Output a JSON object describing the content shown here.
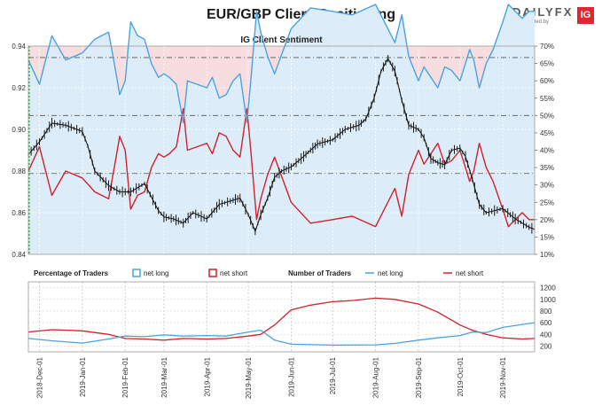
{
  "header": {
    "title": "EUR/GBP Client Positioning",
    "brand_name": "DAILYFX",
    "brand_tagline": "provided by",
    "brand_badge": "IG"
  },
  "colors": {
    "net_long": "#4aa3df",
    "net_short": "#d0222c",
    "price": "#1a1a1a",
    "long_fill": "#dcecf8",
    "short_fill": "#f7dde0"
  },
  "chart_data": [
    {
      "type": "line",
      "title": "IG Client Sentiment",
      "left_axis_ticks": [
        "0.84",
        "0.86",
        "0.88",
        "0.90",
        "0.92",
        "0.94"
      ],
      "left_ylim": [
        0.84,
        0.94
      ],
      "right_axis_ticks": [
        "10%",
        "15%",
        "20%",
        "25%",
        "30%",
        "35%",
        "40%",
        "45%",
        "50%",
        "55%",
        "60%",
        "65%",
        "70%"
      ],
      "right_ylim": [
        10,
        70
      ],
      "reference_lines_pct": [
        33.3,
        50,
        66.7
      ],
      "x_labels": [
        "2018-Dec-01",
        "2019-Jan-01",
        "2019-Feb-01",
        "2019-Mar-01",
        "2019-Apr-01",
        "2019-May-01",
        "2019-Jun-01",
        "2019-Jul-01",
        "2019-Aug-01",
        "2019-Sep-01",
        "2019-Oct-01",
        "2019-Nov-01"
      ],
      "x_range": [
        "2018-11-23",
        "2019-11-24"
      ],
      "series": [
        {
          "name": "net long",
          "unit": "%",
          "dates": [
            "2018-11-23",
            "2018-12-01",
            "2018-12-10",
            "2018-12-20",
            "2019-01-01",
            "2019-01-10",
            "2019-01-20",
            "2019-01-25",
            "2019-01-28",
            "2019-02-01",
            "2019-02-05",
            "2019-02-10",
            "2019-02-15",
            "2019-02-20",
            "2019-02-25",
            "2019-03-01",
            "2019-03-05",
            "2019-03-10",
            "2019-03-15",
            "2019-03-18",
            "2019-03-25",
            "2019-04-01",
            "2019-04-05",
            "2019-04-10",
            "2019-04-15",
            "2019-04-20",
            "2019-04-25",
            "2019-04-30",
            "2019-05-03",
            "2019-05-07",
            "2019-05-10",
            "2019-05-15",
            "2019-05-20",
            "2019-06-01",
            "2019-06-15",
            "2019-07-01",
            "2019-07-15",
            "2019-08-01",
            "2019-08-15",
            "2019-08-20",
            "2019-08-25",
            "2019-09-01",
            "2019-09-05",
            "2019-09-10",
            "2019-09-15",
            "2019-09-20",
            "2019-09-25",
            "2019-10-01",
            "2019-10-05",
            "2019-10-08",
            "2019-10-11",
            "2019-10-15",
            "2019-10-20",
            "2019-10-25",
            "2019-11-01",
            "2019-11-05",
            "2019-11-10",
            "2019-11-15",
            "2019-11-20",
            "2019-11-24"
          ],
          "values": [
            66,
            59,
            73,
            66,
            68,
            72,
            74,
            63,
            56,
            60,
            77,
            73,
            72,
            65,
            61,
            62,
            61,
            59,
            48,
            60,
            59,
            58,
            61,
            55,
            56,
            60,
            62,
            48,
            61,
            80,
            74,
            67,
            62,
            75,
            81,
            80,
            79,
            82,
            71,
            79,
            67,
            60,
            64,
            61,
            58,
            64,
            63,
            60,
            65,
            69,
            66,
            58,
            65,
            69,
            77,
            82,
            80,
            78,
            80,
            80
          ]
        },
        {
          "name": "net short",
          "unit": "%",
          "dates": [
            "2018-11-23",
            "2018-12-01",
            "2018-12-10",
            "2018-12-20",
            "2019-01-01",
            "2019-01-10",
            "2019-01-20",
            "2019-01-25",
            "2019-01-28",
            "2019-02-01",
            "2019-02-05",
            "2019-02-10",
            "2019-02-15",
            "2019-02-20",
            "2019-02-25",
            "2019-03-01",
            "2019-03-05",
            "2019-03-10",
            "2019-03-15",
            "2019-03-18",
            "2019-03-25",
            "2019-04-01",
            "2019-04-05",
            "2019-04-10",
            "2019-04-15",
            "2019-04-20",
            "2019-04-25",
            "2019-04-30",
            "2019-05-03",
            "2019-05-07",
            "2019-05-10",
            "2019-05-15",
            "2019-05-20",
            "2019-06-01",
            "2019-06-15",
            "2019-07-01",
            "2019-07-15",
            "2019-08-01",
            "2019-08-15",
            "2019-08-20",
            "2019-08-25",
            "2019-09-01",
            "2019-09-05",
            "2019-09-10",
            "2019-09-15",
            "2019-09-20",
            "2019-09-25",
            "2019-10-01",
            "2019-10-05",
            "2019-10-08",
            "2019-10-11",
            "2019-10-15",
            "2019-10-20",
            "2019-10-25",
            "2019-11-01",
            "2019-11-05",
            "2019-11-10",
            "2019-11-15",
            "2019-11-20",
            "2019-11-24"
          ],
          "values": [
            34,
            41,
            27,
            34,
            32,
            28,
            26,
            37,
            44,
            40,
            23,
            27,
            28,
            35,
            39,
            38,
            39,
            41,
            52,
            40,
            41,
            42,
            39,
            45,
            44,
            40,
            38,
            52,
            39,
            20,
            26,
            33,
            38,
            25,
            19,
            20,
            21,
            18,
            29,
            21,
            33,
            40,
            36,
            39,
            42,
            36,
            37,
            40,
            35,
            31,
            34,
            42,
            35,
            31,
            23,
            18,
            20,
            22,
            20,
            20
          ]
        },
        {
          "name": "price",
          "unit": "EUR/GBP",
          "dates": [
            "2018-11-23",
            "2018-12-01",
            "2018-12-10",
            "2018-12-20",
            "2019-01-01",
            "2019-01-05",
            "2019-01-10",
            "2019-01-20",
            "2019-01-28",
            "2019-02-05",
            "2019-02-15",
            "2019-02-25",
            "2019-03-01",
            "2019-03-08",
            "2019-03-15",
            "2019-03-22",
            "2019-04-01",
            "2019-04-10",
            "2019-04-20",
            "2019-04-25",
            "2019-05-01",
            "2019-05-06",
            "2019-05-10",
            "2019-05-15",
            "2019-05-20",
            "2019-05-25",
            "2019-06-01",
            "2019-06-10",
            "2019-06-15",
            "2019-06-20",
            "2019-07-01",
            "2019-07-10",
            "2019-07-20",
            "2019-07-25",
            "2019-07-31",
            "2019-08-05",
            "2019-08-10",
            "2019-08-15",
            "2019-08-20",
            "2019-08-25",
            "2019-09-01",
            "2019-09-05",
            "2019-09-10",
            "2019-09-15",
            "2019-09-20",
            "2019-09-25",
            "2019-10-01",
            "2019-10-05",
            "2019-10-10",
            "2019-10-15",
            "2019-10-20",
            "2019-11-01",
            "2019-11-10",
            "2019-11-20",
            "2019-11-24"
          ],
          "values": [
            0.888,
            0.894,
            0.903,
            0.902,
            0.899,
            0.892,
            0.88,
            0.873,
            0.87,
            0.87,
            0.874,
            0.861,
            0.858,
            0.857,
            0.855,
            0.86,
            0.857,
            0.864,
            0.866,
            0.867,
            0.859,
            0.851,
            0.859,
            0.867,
            0.877,
            0.88,
            0.882,
            0.887,
            0.89,
            0.893,
            0.895,
            0.9,
            0.902,
            0.905,
            0.915,
            0.928,
            0.934,
            0.928,
            0.914,
            0.902,
            0.9,
            0.896,
            0.886,
            0.884,
            0.883,
            0.89,
            0.891,
            0.887,
            0.876,
            0.864,
            0.86,
            0.862,
            0.857,
            0.853,
            0.852
          ]
        }
      ]
    },
    {
      "type": "line",
      "title": "",
      "legend": {
        "percentage_title": "Percentage of Traders",
        "percentage_long": "net long",
        "percentage_short": "net short",
        "number_title": "Number of Traders",
        "number_long": "net long",
        "number_short": "net short"
      },
      "right_axis_ticks": [
        "200",
        "400",
        "600",
        "800",
        "1000",
        "1200"
      ],
      "ylim": [
        100,
        1300
      ],
      "x_labels": [
        "2018-Dec-01",
        "2019-Jan-01",
        "2019-Feb-01",
        "2019-Mar-01",
        "2019-Apr-01",
        "2019-May-01",
        "2019-Jun-01",
        "2019-Jul-01",
        "2019-Aug-01",
        "2019-Sep-01",
        "2019-Oct-01",
        "2019-Nov-01"
      ],
      "series": [
        {
          "name": "net long",
          "dates": [
            "2018-11-23",
            "2018-12-10",
            "2019-01-01",
            "2019-01-20",
            "2019-02-01",
            "2019-02-15",
            "2019-03-01",
            "2019-03-15",
            "2019-04-01",
            "2019-04-15",
            "2019-05-01",
            "2019-05-10",
            "2019-05-20",
            "2019-06-01",
            "2019-07-01",
            "2019-08-01",
            "2019-08-15",
            "2019-09-01",
            "2019-09-15",
            "2019-10-01",
            "2019-10-10",
            "2019-10-20",
            "2019-11-01",
            "2019-11-15",
            "2019-11-24"
          ],
          "values": [
            330,
            290,
            250,
            320,
            370,
            360,
            390,
            370,
            380,
            370,
            440,
            470,
            300,
            230,
            215,
            220,
            245,
            300,
            340,
            380,
            440,
            430,
            520,
            570,
            600
          ]
        },
        {
          "name": "net short",
          "dates": [
            "2018-11-23",
            "2018-12-10",
            "2019-01-01",
            "2019-01-20",
            "2019-02-01",
            "2019-02-15",
            "2019-03-01",
            "2019-03-15",
            "2019-04-01",
            "2019-04-15",
            "2019-05-01",
            "2019-05-10",
            "2019-05-20",
            "2019-06-01",
            "2019-06-15",
            "2019-07-01",
            "2019-07-15",
            "2019-08-01",
            "2019-08-15",
            "2019-09-01",
            "2019-09-15",
            "2019-10-01",
            "2019-10-10",
            "2019-10-20",
            "2019-11-01",
            "2019-11-15",
            "2019-11-24"
          ],
          "values": [
            440,
            480,
            460,
            400,
            330,
            320,
            300,
            330,
            320,
            330,
            370,
            400,
            560,
            820,
            900,
            960,
            980,
            1020,
            1000,
            920,
            780,
            560,
            470,
            400,
            340,
            320,
            330
          ]
        }
      ]
    }
  ]
}
